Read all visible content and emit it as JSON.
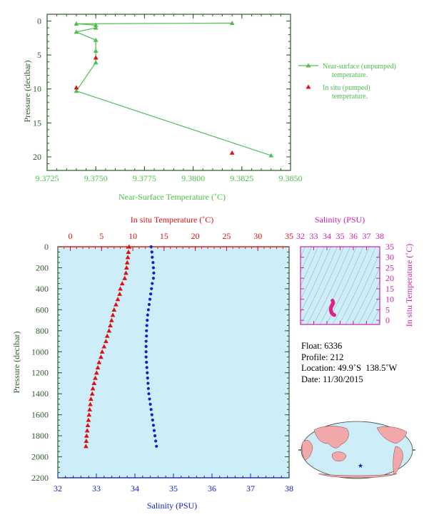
{
  "colors": {
    "green_axis": "#2e5a2e",
    "green_series": "#4cc04c",
    "red_series": "#dd1111",
    "blue_series": "#1122cc",
    "magenta": "#cc22aa",
    "panel_bg": "#cdeef8",
    "land": "#f2a8a8",
    "ocean": "#cdeef8"
  },
  "chart_data": [
    {
      "type": "line",
      "xlabel": "Near-Surface Temperature (˚C)",
      "ylabel": "Pressure (decibar)",
      "xlim": [
        9.3725,
        9.385
      ],
      "ylim": [
        22,
        -1
      ],
      "xticks": [
        "9.3725",
        "9.3750",
        "9.3775",
        "9.3800",
        "9.3825",
        "9.3850"
      ],
      "yticks": [
        "0",
        "5",
        "10",
        "15",
        "20"
      ],
      "legend_position": "right",
      "series": [
        {
          "name": "Near-surface (unpumped) temperature.",
          "marker": "triangle",
          "points": [
            {
              "x": 9.382,
              "y": 0.3
            },
            {
              "x": 9.374,
              "y": 0.4
            },
            {
              "x": 9.375,
              "y": 0.6
            },
            {
              "x": 9.375,
              "y": 1.0
            },
            {
              "x": 9.374,
              "y": 1.6
            },
            {
              "x": 9.375,
              "y": 2.8
            },
            {
              "x": 9.375,
              "y": 4.4
            },
            {
              "x": 9.375,
              "y": 6.1
            },
            {
              "x": 9.374,
              "y": 10.3
            },
            {
              "x": 9.384,
              "y": 19.8
            }
          ]
        },
        {
          "name": "In situ (pumped) temperature.",
          "marker": "triangle",
          "points": [
            {
              "x": 9.375,
              "y": 5.4
            },
            {
              "x": 9.374,
              "y": 9.8
            },
            {
              "x": 9.382,
              "y": 19.4
            }
          ]
        }
      ]
    },
    {
      "type": "scatter",
      "top_xlabel": "In situ Temperature (˚C)",
      "bottom_xlabel": "Salinity (PSU)",
      "ylabel": "Pressure (decibar)",
      "temp_xlim": [
        -2,
        35
      ],
      "sal_xlim": [
        32,
        38
      ],
      "ylim": [
        2200,
        0
      ],
      "temp_ticks": [
        "0",
        "5",
        "10",
        "15",
        "20",
        "25",
        "30",
        "35"
      ],
      "sal_ticks": [
        "32",
        "33",
        "34",
        "35",
        "36",
        "37",
        "38"
      ],
      "yticks": [
        "0",
        "200",
        "400",
        "600",
        "800",
        "1000",
        "1200",
        "1400",
        "1600",
        "1800",
        "2000",
        "2200"
      ],
      "series": [
        {
          "name": "In situ Temperature",
          "marker": "triangle",
          "points": [
            [
              9.4,
              0
            ],
            [
              9.3,
              50
            ],
            [
              9.2,
              100
            ],
            [
              9.1,
              150
            ],
            [
              9.0,
              200
            ],
            [
              8.9,
              250
            ],
            [
              8.7,
              300
            ],
            [
              8.3,
              350
            ],
            [
              8.0,
              400
            ],
            [
              7.9,
              450
            ],
            [
              7.6,
              500
            ],
            [
              7.3,
              550
            ],
            [
              7.0,
              600
            ],
            [
              6.8,
              650
            ],
            [
              6.6,
              700
            ],
            [
              6.4,
              750
            ],
            [
              6.2,
              800
            ],
            [
              5.9,
              850
            ],
            [
              5.7,
              900
            ],
            [
              5.4,
              950
            ],
            [
              5.1,
              1000
            ],
            [
              4.9,
              1050
            ],
            [
              4.6,
              1100
            ],
            [
              4.4,
              1150
            ],
            [
              4.2,
              1200
            ],
            [
              4.0,
              1250
            ],
            [
              3.8,
              1300
            ],
            [
              3.6,
              1350
            ],
            [
              3.5,
              1400
            ],
            [
              3.3,
              1450
            ],
            [
              3.2,
              1500
            ],
            [
              3.1,
              1550
            ],
            [
              3.0,
              1600
            ],
            [
              2.9,
              1650
            ],
            [
              2.8,
              1700
            ],
            [
              2.7,
              1750
            ],
            [
              2.6,
              1800
            ],
            [
              2.55,
              1850
            ],
            [
              2.5,
              1900
            ]
          ]
        },
        {
          "name": "Salinity",
          "marker": "dot",
          "points": [
            [
              34.42,
              0
            ],
            [
              34.44,
              50
            ],
            [
              34.45,
              100
            ],
            [
              34.47,
              150
            ],
            [
              34.48,
              200
            ],
            [
              34.49,
              250
            ],
            [
              34.48,
              300
            ],
            [
              34.45,
              350
            ],
            [
              34.43,
              400
            ],
            [
              34.41,
              450
            ],
            [
              34.39,
              500
            ],
            [
              34.37,
              550
            ],
            [
              34.35,
              600
            ],
            [
              34.33,
              650
            ],
            [
              34.32,
              700
            ],
            [
              34.31,
              750
            ],
            [
              34.3,
              800
            ],
            [
              34.3,
              850
            ],
            [
              34.29,
              900
            ],
            [
              34.29,
              950
            ],
            [
              34.29,
              1000
            ],
            [
              34.29,
              1050
            ],
            [
              34.3,
              1100
            ],
            [
              34.31,
              1150
            ],
            [
              34.32,
              1200
            ],
            [
              34.33,
              1250
            ],
            [
              34.34,
              1300
            ],
            [
              34.35,
              1350
            ],
            [
              34.36,
              1400
            ],
            [
              34.38,
              1450
            ],
            [
              34.4,
              1500
            ],
            [
              34.42,
              1550
            ],
            [
              34.44,
              1600
            ],
            [
              34.46,
              1650
            ],
            [
              34.48,
              1700
            ],
            [
              34.5,
              1750
            ],
            [
              34.52,
              1800
            ],
            [
              34.54,
              1850
            ],
            [
              34.56,
              1900
            ]
          ]
        }
      ]
    },
    {
      "type": "scatter",
      "top_xlabel": "Salinity (PSU)",
      "ylabel": "In situ Temperature (˚C)",
      "xlim": [
        32,
        38
      ],
      "ylim": [
        -2,
        35
      ],
      "xticks": [
        "32",
        "33",
        "34",
        "35",
        "36",
        "37",
        "38"
      ],
      "yticks": [
        "0",
        "5",
        "10",
        "15",
        "20",
        "25",
        "30",
        "35"
      ],
      "points": [
        [
          34.42,
          9.4
        ],
        [
          34.45,
          9.0
        ],
        [
          34.48,
          8.4
        ],
        [
          34.47,
          8.0
        ],
        [
          34.43,
          7.6
        ],
        [
          34.39,
          7.0
        ],
        [
          34.35,
          6.6
        ],
        [
          34.32,
          6.2
        ],
        [
          34.3,
          5.7
        ],
        [
          34.29,
          5.1
        ],
        [
          34.3,
          4.6
        ],
        [
          34.32,
          4.2
        ],
        [
          34.34,
          3.8
        ],
        [
          34.36,
          3.5
        ],
        [
          34.4,
          3.2
        ],
        [
          34.44,
          3.0
        ],
        [
          34.48,
          2.8
        ],
        [
          34.52,
          2.6
        ],
        [
          34.56,
          2.5
        ]
      ]
    }
  ],
  "float_info": {
    "float_label": "Float:",
    "float_value": "6336",
    "profile_label": "Profile:",
    "profile_value": "212",
    "location_label": "Location:",
    "location_value": "49.9˚S  138.5˚W",
    "date_label": "Date:",
    "date_value": "11/30/2015"
  },
  "map": {
    "marker_lon": -138.5,
    "marker_lat": -49.9
  }
}
